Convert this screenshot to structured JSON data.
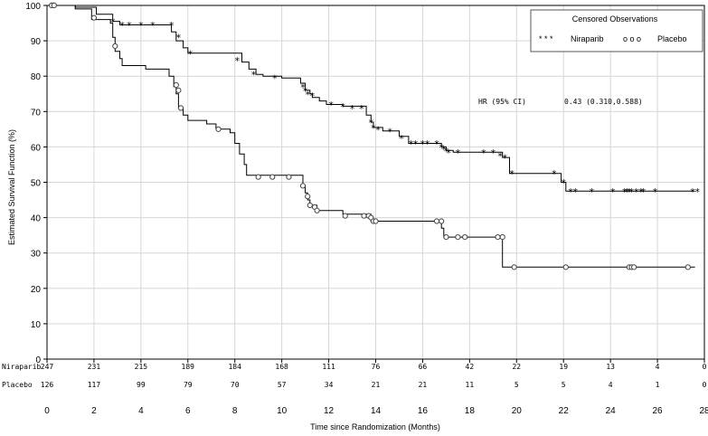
{
  "chart_data": {
    "type": "line",
    "subtype": "kaplan-meier",
    "xlabel": "Time since Randomization (Months)",
    "ylabel": "Estimated Survival Function (%)",
    "xlim": [
      0,
      28
    ],
    "ylim": [
      0,
      100
    ],
    "xticks": [
      "0",
      "2",
      "4",
      "6",
      "8",
      "10",
      "12",
      "14",
      "16",
      "18",
      "20",
      "22",
      "24",
      "26",
      "28"
    ],
    "yticks": [
      "0",
      "10",
      "20",
      "30",
      "40",
      "50",
      "60",
      "70",
      "80",
      "90",
      "100"
    ],
    "grid": true,
    "legend": {
      "title": "Censored Observations",
      "placement": "top-right",
      "entries": [
        {
          "marker": "* * *",
          "label": "Niraparib"
        },
        {
          "marker": "o o o",
          "label": "Placebo"
        }
      ]
    },
    "annotation": {
      "label": "HR (95% CI)",
      "value": "0.43 (0.310,0.588)"
    },
    "series": [
      {
        "name": "Niraparib",
        "marker": "star",
        "steps": [
          [
            0,
            100
          ],
          [
            1.2,
            99.5
          ],
          [
            2.1,
            97.5
          ],
          [
            2.8,
            95.5
          ],
          [
            3.1,
            94.5
          ],
          [
            5.3,
            92.5
          ],
          [
            5.5,
            90
          ],
          [
            5.8,
            88
          ],
          [
            6.0,
            86.5
          ],
          [
            8.3,
            84
          ],
          [
            8.6,
            82
          ],
          [
            8.9,
            80.5
          ],
          [
            9.2,
            80
          ],
          [
            10.0,
            79.5
          ],
          [
            10.8,
            78
          ],
          [
            11.0,
            76
          ],
          [
            11.2,
            75
          ],
          [
            11.3,
            74
          ],
          [
            11.6,
            73
          ],
          [
            11.9,
            72
          ],
          [
            12.6,
            71.5
          ],
          [
            13.6,
            69
          ],
          [
            13.8,
            67
          ],
          [
            13.9,
            65.5
          ],
          [
            14.3,
            64.5
          ],
          [
            15.0,
            63
          ],
          [
            15.4,
            61
          ],
          [
            16.8,
            60
          ],
          [
            17.0,
            59
          ],
          [
            17.3,
            58.5
          ],
          [
            19.4,
            57
          ],
          [
            19.7,
            52.5
          ],
          [
            21.9,
            50
          ],
          [
            22.1,
            47.5
          ],
          [
            27.6,
            47.5
          ]
        ],
        "censored": [
          [
            0.2,
            100
          ],
          [
            0.3,
            100
          ],
          [
            2.8,
            95.5
          ],
          [
            3.2,
            94.5
          ],
          [
            3.5,
            94.5
          ],
          [
            4.0,
            94.5
          ],
          [
            4.5,
            94.5
          ],
          [
            5.3,
            94.5
          ],
          [
            5.6,
            91
          ],
          [
            6.1,
            86.5
          ],
          [
            8.1,
            84.5
          ],
          [
            8.8,
            80.5
          ],
          [
            9.7,
            79.5
          ],
          [
            10.9,
            77
          ],
          [
            11.0,
            76
          ],
          [
            11.1,
            75
          ],
          [
            11.3,
            74.5
          ],
          [
            12.1,
            72
          ],
          [
            12.6,
            71.5
          ],
          [
            13.0,
            71
          ],
          [
            13.4,
            71
          ],
          [
            13.8,
            67
          ],
          [
            13.9,
            65.5
          ],
          [
            14.1,
            65
          ],
          [
            14.6,
            64.5
          ],
          [
            15.1,
            62.5
          ],
          [
            15.5,
            61
          ],
          [
            15.7,
            61
          ],
          [
            16.0,
            61
          ],
          [
            16.2,
            61
          ],
          [
            16.6,
            61
          ],
          [
            16.8,
            60
          ],
          [
            16.9,
            59.5
          ],
          [
            17.0,
            59
          ],
          [
            17.1,
            58.5
          ],
          [
            17.5,
            58.5
          ],
          [
            18.6,
            58.5
          ],
          [
            19.0,
            58.5
          ],
          [
            19.3,
            57.5
          ],
          [
            19.5,
            57
          ],
          [
            19.8,
            52.5
          ],
          [
            21.6,
            52.5
          ],
          [
            22.0,
            50
          ],
          [
            22.3,
            47.5
          ],
          [
            22.5,
            47.5
          ],
          [
            23.2,
            47.5
          ],
          [
            24.1,
            47.5
          ],
          [
            24.6,
            47.5
          ],
          [
            24.7,
            47.5
          ],
          [
            24.8,
            47.5
          ],
          [
            24.9,
            47.5
          ],
          [
            25.1,
            47.5
          ],
          [
            25.3,
            47.5
          ],
          [
            25.4,
            47.5
          ],
          [
            25.9,
            47.5
          ],
          [
            27.5,
            47.5
          ],
          [
            27.7,
            47.5
          ]
        ]
      },
      {
        "name": "Placebo",
        "marker": "circle",
        "steps": [
          [
            0,
            100
          ],
          [
            1.2,
            99
          ],
          [
            1.9,
            96
          ],
          [
            2.7,
            95
          ],
          [
            2.8,
            91
          ],
          [
            2.9,
            87
          ],
          [
            3.1,
            85
          ],
          [
            3.2,
            83
          ],
          [
            4.2,
            82
          ],
          [
            5.2,
            80
          ],
          [
            5.4,
            77
          ],
          [
            5.5,
            75
          ],
          [
            5.6,
            71
          ],
          [
            5.8,
            69
          ],
          [
            6.0,
            67.5
          ],
          [
            6.8,
            66.5
          ],
          [
            7.2,
            65
          ],
          [
            7.8,
            64
          ],
          [
            8.0,
            61
          ],
          [
            8.2,
            58
          ],
          [
            8.4,
            55
          ],
          [
            8.5,
            52
          ],
          [
            10.9,
            49
          ],
          [
            11.0,
            47
          ],
          [
            11.1,
            45
          ],
          [
            11.2,
            43.5
          ],
          [
            11.5,
            42
          ],
          [
            12.6,
            41
          ],
          [
            13.8,
            39
          ],
          [
            16.8,
            37
          ],
          [
            16.9,
            34.5
          ],
          [
            19.4,
            26
          ],
          [
            27.6,
            26
          ]
        ],
        "censored": [
          [
            0.2,
            100
          ],
          [
            0.3,
            100
          ],
          [
            2.0,
            96.5
          ],
          [
            2.9,
            88.5
          ],
          [
            5.5,
            77.5
          ],
          [
            5.6,
            76
          ],
          [
            5.7,
            71
          ],
          [
            7.3,
            65
          ],
          [
            9.0,
            51.5
          ],
          [
            9.6,
            51.5
          ],
          [
            10.3,
            51.5
          ],
          [
            10.9,
            49
          ],
          [
            11.1,
            46
          ],
          [
            11.2,
            43.5
          ],
          [
            11.4,
            43
          ],
          [
            11.5,
            42
          ],
          [
            12.7,
            40.5
          ],
          [
            13.5,
            40.5
          ],
          [
            13.7,
            40.5
          ],
          [
            13.8,
            40
          ],
          [
            13.9,
            39
          ],
          [
            14.0,
            39
          ],
          [
            16.6,
            39
          ],
          [
            16.8,
            39
          ],
          [
            17.0,
            34.5
          ],
          [
            17.5,
            34.5
          ],
          [
            17.8,
            34.5
          ],
          [
            19.2,
            34.5
          ],
          [
            19.4,
            34.5
          ],
          [
            19.9,
            26
          ],
          [
            22.1,
            26
          ],
          [
            24.8,
            26
          ],
          [
            24.9,
            26
          ],
          [
            25.0,
            26
          ],
          [
            27.3,
            26
          ]
        ]
      }
    ],
    "at_risk": {
      "rows": [
        {
          "label": "Niraparib",
          "values": [
            "247",
            "231",
            "215",
            "189",
            "184",
            "168",
            "111",
            "76",
            "66",
            "42",
            "22",
            "19",
            "13",
            "4",
            "0"
          ]
        },
        {
          "label": "Placebo",
          "values": [
            "126",
            "117",
            "99",
            "79",
            "70",
            "57",
            "34",
            "21",
            "21",
            "11",
            "5",
            "5",
            "4",
            "1",
            "0"
          ]
        }
      ]
    }
  }
}
